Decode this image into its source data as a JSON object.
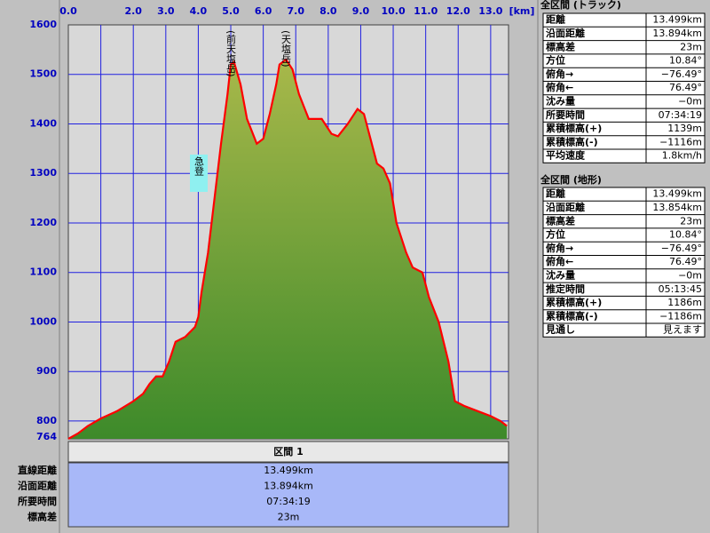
{
  "chart_data": {
    "type": "area",
    "x": [
      0,
      0.3,
      0.6,
      1.0,
      1.5,
      2.0,
      2.3,
      2.5,
      2.7,
      2.9,
      3.1,
      3.3,
      3.6,
      3.9,
      4.0,
      4.1,
      4.3,
      4.5,
      4.7,
      4.9,
      5.0,
      5.1,
      5.3,
      5.5,
      5.8,
      6.0,
      6.2,
      6.4,
      6.5,
      6.7,
      6.9,
      7.1,
      7.4,
      7.8,
      8.1,
      8.3,
      8.6,
      8.9,
      9.1,
      9.3,
      9.5,
      9.7,
      9.9,
      10.1,
      10.4,
      10.6,
      10.9,
      11.1,
      11.4,
      11.7,
      11.9,
      12.2,
      12.6,
      13.0,
      13.3,
      13.5
    ],
    "values": [
      764,
      775,
      790,
      805,
      820,
      840,
      855,
      875,
      890,
      890,
      920,
      960,
      970,
      990,
      1010,
      1060,
      1140,
      1250,
      1360,
      1460,
      1520,
      1525,
      1480,
      1410,
      1360,
      1370,
      1420,
      1480,
      1520,
      1530,
      1510,
      1460,
      1410,
      1410,
      1380,
      1375,
      1400,
      1430,
      1420,
      1370,
      1320,
      1310,
      1280,
      1200,
      1140,
      1110,
      1100,
      1050,
      1000,
      920,
      840,
      830,
      820,
      810,
      800,
      790
    ],
    "color": "#ff0000",
    "xlabel": "[km]",
    "xlim": [
      0,
      13.55
    ],
    "xticks": [
      {
        "value": 0,
        "label": "0.0"
      },
      {
        "value": 1,
        "label": null
      },
      {
        "value": 2,
        "label": "2.0"
      },
      {
        "value": 3,
        "label": "3.0"
      },
      {
        "value": 4,
        "label": "4.0"
      },
      {
        "value": 5,
        "label": "5.0"
      },
      {
        "value": 6,
        "label": "6.0"
      },
      {
        "value": 7,
        "label": "7.0"
      },
      {
        "value": 8,
        "label": "8.0"
      },
      {
        "value": 9,
        "label": "9.0"
      },
      {
        "value": 10,
        "label": "10.0"
      },
      {
        "value": 11,
        "label": "11.0"
      },
      {
        "value": 12,
        "label": "12.0"
      },
      {
        "value": 13,
        "label": "13.0"
      }
    ],
    "ylim": [
      764,
      1600
    ],
    "yticks": [
      764,
      800,
      900,
      1000,
      1100,
      1200,
      1300,
      1400,
      1500,
      1600
    ],
    "grid": true,
    "annotations": [
      "(前天塩岳)",
      "(天塩岳)",
      "急登"
    ]
  },
  "panels": [
    {
      "title": "全区間 (トラック)",
      "rows": [
        [
          "距離",
          "13.499km"
        ],
        [
          "沿面距離",
          "13.894km"
        ],
        [
          "標高差",
          "23m"
        ],
        [
          "方位",
          "10.84°"
        ],
        [
          "俯角→",
          "−76.49°"
        ],
        [
          "俯角←",
          "76.49°"
        ],
        [
          "沈み量",
          "−0m"
        ],
        [
          "所要時間",
          "07:34:19"
        ],
        [
          "累積標高(+)",
          "1139m"
        ],
        [
          "累積標高(-)",
          "−1116m"
        ],
        [
          "平均速度",
          "1.8km/h"
        ]
      ]
    },
    {
      "title": "全区間 (地形)",
      "rows": [
        [
          "距離",
          "13.499km"
        ],
        [
          "沿面距離",
          "13.854km"
        ],
        [
          "標高差",
          "23m"
        ],
        [
          "方位",
          "10.84°"
        ],
        [
          "俯角→",
          "−76.49°"
        ],
        [
          "俯角←",
          "76.49°"
        ],
        [
          "沈み量",
          "−0m"
        ],
        [
          "推定時間",
          "05:13:45"
        ],
        [
          "累積標高(+)",
          "1186m"
        ],
        [
          "累積標高(-)",
          "−1186m"
        ],
        [
          "見通し",
          "見えます"
        ]
      ]
    }
  ],
  "section": {
    "title": "区間 1",
    "rows": [
      [
        "直線距離",
        "13.499km"
      ],
      [
        "沿面距離",
        "13.894km"
      ],
      [
        "所要時間",
        "07:34:19"
      ],
      [
        "標高差",
        "23m"
      ]
    ]
  }
}
